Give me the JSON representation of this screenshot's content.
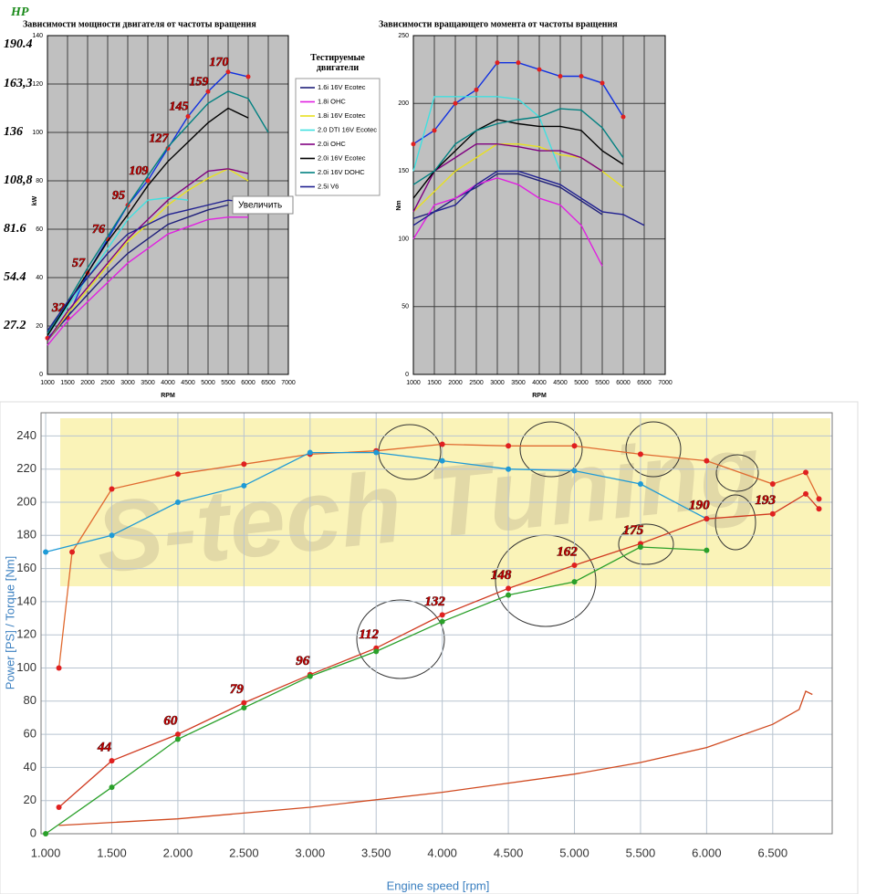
{
  "chart_data": [
    {
      "type": "line",
      "title": "Зависимости мощности двигателя от частоты вращения",
      "xlabel": "RPM",
      "ylabel": "kW",
      "y2label": "HP",
      "x": [
        1000,
        1500,
        2000,
        2500,
        3000,
        3500,
        4000,
        4500,
        5000,
        5500,
        6000,
        6500
      ],
      "xlim": [
        1000,
        7000
      ],
      "xticks": [
        1000,
        1500,
        2000,
        2500,
        3000,
        3500,
        4000,
        4500,
        5000,
        5500,
        6000,
        6500,
        7000
      ],
      "ylim": [
        0,
        140
      ],
      "yticks": [
        0,
        20,
        40,
        60,
        80,
        100,
        120,
        140
      ],
      "y2lim": [
        0,
        190.4
      ],
      "y2ticks": [
        27.2,
        54.4,
        81.6,
        {
          "value": 108.8,
          "label": "108,8"
        },
        136,
        {
          "value": 163.3,
          "label": "163,3"
        },
        190.4
      ],
      "grid": true,
      "plot_background": "#c0c0c0",
      "legend": "right",
      "legend_title": "Тестируемые двигатели",
      "tooltip": "Увеличить",
      "series": [
        {
          "color": "#1030e0",
          "markers": true,
          "marker_color": "#e02020",
          "values": [
            15,
            23.5,
            41.9,
            55.9,
            69.9,
            80.1,
            93.4,
            106.6,
            116.9,
            125,
            123,
            null
          ],
          "value_labels": [
            null,
            "32",
            "57",
            "76",
            "95",
            "109",
            "127",
            "145",
            "159",
            "170",
            null,
            null
          ]
        },
        {
          "name": "1.6i 16V Ecotec",
          "color": "#1f1f7a",
          "values": [
            14,
            24,
            33,
            42,
            50,
            56,
            62,
            65,
            68,
            70,
            null,
            null
          ]
        },
        {
          "name": "1.8i OHC",
          "color": "#e020e0",
          "values": [
            12,
            22,
            30,
            38,
            46,
            52,
            58,
            61,
            64,
            65,
            65,
            null
          ]
        },
        {
          "name": "1.8i 16V Ecotec",
          "color": "#e8e020",
          "values": [
            14,
            25,
            35,
            45,
            55,
            62,
            70,
            76,
            81,
            85,
            80,
            null
          ]
        },
        {
          "name": "2.0 DTI 16V Ecotec",
          "color": "#40e0e0",
          "values": [
            16,
            28,
            40,
            52,
            64,
            72,
            73,
            72,
            null,
            null,
            null,
            null
          ]
        },
        {
          "name": "2.0i OHC",
          "color": "#800080",
          "values": [
            14,
            26,
            36,
            46,
            56,
            64,
            72,
            78,
            84,
            85,
            83,
            null
          ]
        },
        {
          "name": "2.0i 16V Ecotec",
          "color": "#000000",
          "values": [
            16,
            29,
            42,
            55,
            66,
            78,
            88,
            96,
            104,
            110,
            106,
            null
          ]
        },
        {
          "name": "2.0i 16V DOHC",
          "color": "#008080",
          "values": [
            17,
            30,
            44,
            57,
            70,
            82,
            94,
            103,
            112,
            117,
            114,
            100
          ]
        },
        {
          "name": "2.5i V6",
          "color": "#202090",
          "values": [
            18,
            30,
            40,
            50,
            58,
            62,
            66,
            68,
            70,
            72,
            71,
            null
          ]
        }
      ]
    },
    {
      "type": "line",
      "title": "Зависимости вращающего момента от частоты вращения",
      "xlabel": "RPM",
      "ylabel": "Nm",
      "x": [
        1000,
        1500,
        2000,
        2500,
        3000,
        3500,
        4000,
        4500,
        5000,
        5500,
        6000,
        6500
      ],
      "xlim": [
        1000,
        7000
      ],
      "xticks": [
        1000,
        1500,
        2000,
        2500,
        3000,
        3500,
        4000,
        4500,
        5000,
        5500,
        6000,
        6500,
        7000
      ],
      "ylim": [
        0,
        250
      ],
      "yticks": [
        0,
        50,
        100,
        150,
        200,
        250
      ],
      "grid": true,
      "plot_background": "#c0c0c0",
      "series": [
        {
          "color": "#1030e0",
          "markers": true,
          "marker_color": "#e02020",
          "values": [
            170,
            180,
            200,
            210,
            230,
            230,
            225,
            220,
            220,
            215,
            190,
            null
          ]
        },
        {
          "color": "#1f1f7a",
          "values": [
            115,
            120,
            130,
            138,
            148,
            148,
            143,
            138,
            128,
            118,
            null,
            null
          ]
        },
        {
          "color": "#e020e0",
          "values": [
            100,
            125,
            130,
            140,
            145,
            140,
            130,
            125,
            110,
            80,
            null,
            null
          ]
        },
        {
          "color": "#e8e020",
          "values": [
            120,
            135,
            150,
            160,
            170,
            170,
            168,
            162,
            160,
            150,
            138,
            null
          ]
        },
        {
          "color": "#40e0e0",
          "values": [
            150,
            205,
            205,
            205,
            205,
            203,
            190,
            150,
            null,
            null,
            null,
            null
          ]
        },
        {
          "color": "#800080",
          "values": [
            120,
            150,
            160,
            170,
            170,
            168,
            165,
            165,
            160,
            150,
            null,
            null
          ]
        },
        {
          "color": "#000000",
          "values": [
            130,
            150,
            165,
            180,
            188,
            185,
            183,
            183,
            180,
            165,
            155,
            null
          ]
        },
        {
          "color": "#008080",
          "values": [
            140,
            150,
            170,
            180,
            185,
            188,
            190,
            196,
            195,
            182,
            160,
            null
          ]
        },
        {
          "color": "#202090",
          "values": [
            110,
            120,
            125,
            140,
            150,
            150,
            145,
            140,
            130,
            120,
            118,
            110
          ]
        }
      ]
    },
    {
      "type": "line",
      "xlabel": "Engine speed [rpm]",
      "ylabel": "Power [PS] / Torque [Nm]",
      "watermark": "S-tech Tuning",
      "xlim": [
        965,
        6950
      ],
      "xticks": [
        {
          "value": 1000,
          "label": "1.000"
        },
        {
          "value": 1500,
          "label": "1.500"
        },
        {
          "value": 2000,
          "label": "2.000"
        },
        {
          "value": 2500,
          "label": "2.500"
        },
        {
          "value": 3000,
          "label": "3.000"
        },
        {
          "value": 3500,
          "label": "3.500"
        },
        {
          "value": 4000,
          "label": "4.000"
        },
        {
          "value": 4500,
          "label": "4.500"
        },
        {
          "value": 5000,
          "label": "5.000"
        },
        {
          "value": 5500,
          "label": "5.500"
        },
        {
          "value": 6000,
          "label": "6.000"
        },
        {
          "value": 6500,
          "label": "6.500"
        }
      ],
      "ylim": [
        0,
        254
      ],
      "yticks": [
        0,
        20,
        40,
        60,
        80,
        100,
        120,
        140,
        160,
        180,
        200,
        220,
        240
      ],
      "grid": true,
      "series": [
        {
          "color": "#e06a30",
          "markers": true,
          "marker_color": "#e02020",
          "x": [
            1100,
            1200,
            1500,
            2000,
            2500,
            3000,
            3500,
            4000,
            4500,
            5000,
            5500,
            6000,
            6500,
            6750,
            6850
          ],
          "values": [
            100,
            170,
            208,
            217,
            223,
            229,
            231,
            235,
            234,
            234,
            229,
            225,
            211,
            218,
            202
          ]
        },
        {
          "color": "#1e9ad6",
          "markers": true,
          "marker_color": "#1e9ad6",
          "x": [
            1000,
            1500,
            2000,
            2500,
            3000,
            3500,
            4000,
            4500,
            5000,
            5500,
            6000
          ],
          "values": [
            170,
            180,
            200,
            210,
            230,
            230,
            225,
            220,
            219,
            211,
            190
          ]
        },
        {
          "color": "#d03a20",
          "markers": true,
          "marker_color": "#e02020",
          "x": [
            1100,
            1500,
            2000,
            2500,
            3000,
            3500,
            4000,
            4500,
            5000,
            5500,
            6000,
            6500,
            6750,
            6850
          ],
          "values": [
            16,
            44,
            60,
            79,
            96,
            112,
            132,
            148,
            162,
            175,
            190,
            193,
            205,
            196
          ],
          "value_labels": [
            null,
            "44",
            "60",
            "79",
            "96",
            "112",
            "132",
            "148",
            "162",
            "175",
            "190",
            "193",
            null,
            null
          ]
        },
        {
          "color": "#2aa02a",
          "markers": true,
          "marker_color": "#2aa02a",
          "x": [
            1000,
            1500,
            2000,
            2500,
            3000,
            3500,
            4000,
            4500,
            5000,
            5500,
            6000
          ],
          "values": [
            0,
            28,
            57,
            76,
            95,
            110,
            128,
            144,
            152,
            173,
            171
          ]
        },
        {
          "color": "#d04a20",
          "x": [
            1100,
            2000,
            3000,
            4000,
            5000,
            5500,
            6000,
            6500,
            6700,
            6750,
            6800
          ],
          "values": [
            5,
            9,
            16,
            25,
            36,
            43,
            52,
            66,
            75,
            86,
            84
          ]
        }
      ]
    }
  ]
}
